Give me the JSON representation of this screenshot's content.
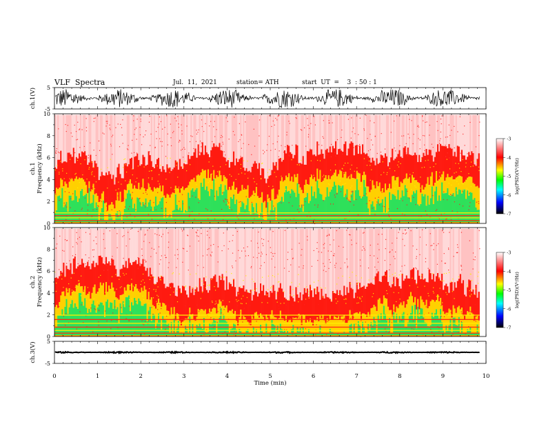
{
  "header": {
    "title": "VLF  Spectra",
    "date": "Jul.  11,  2021",
    "station": "station= ATH",
    "start": "start  UT  =    3  : 50 : 1"
  },
  "chart_data": [
    {
      "type": "line",
      "panel": "ch1-waveform",
      "ylabel": "ch.1(V)",
      "ylim": [
        -5,
        5
      ],
      "yticks": [
        "5",
        "-5"
      ],
      "xlim": [
        0,
        10
      ],
      "series_color": "#000000",
      "amplitude_range": [
        -4.5,
        4.5
      ]
    },
    {
      "type": "heatmap",
      "panel": "ch1-spectrogram",
      "ylabel": "Frequency (kHz)",
      "channel_label": "ch.1",
      "ylim": [
        0,
        10
      ],
      "yticks": [
        "0",
        "2",
        "4",
        "6",
        "8",
        "10"
      ],
      "xlim": [
        0,
        9.85
      ],
      "colorbar": {
        "label": "log(PSD)(V²/Hz)",
        "range": [
          -7,
          -3
        ],
        "ticks": [
          "-3",
          "-4",
          "-5",
          "-6",
          "-7"
        ],
        "colors": [
          "#ffffff",
          "#ff0000",
          "#ffff00",
          "#00ff00",
          "#00ffff",
          "#0000ff",
          "#000000"
        ]
      }
    },
    {
      "type": "heatmap",
      "panel": "ch2-spectrogram",
      "ylabel": "Frequency (kHz)",
      "channel_label": "ch.2",
      "ylim": [
        0,
        10
      ],
      "yticks": [
        "0",
        "2",
        "4",
        "6",
        "8",
        "10"
      ],
      "xlim": [
        0,
        9.85
      ],
      "colorbar": {
        "label": "log(PSD)(V²/Hz)",
        "range": [
          -7,
          -3
        ],
        "ticks": [
          "-3",
          "-4",
          "-5",
          "-6",
          "-7"
        ],
        "colors": [
          "#ffffff",
          "#ff0000",
          "#ffff00",
          "#00ff00",
          "#00ffff",
          "#0000ff",
          "#000000"
        ]
      }
    },
    {
      "type": "line",
      "panel": "ch3-waveform",
      "ylabel": "ch.3(V)",
      "ylim": [
        -5,
        5
      ],
      "yticks": [
        "5",
        "-5"
      ],
      "xlim": [
        0,
        10
      ],
      "series_color": "#000000",
      "amplitude_range": [
        -0.3,
        0.3
      ]
    }
  ],
  "x_axis": {
    "label": "Time  (min)",
    "ticks": [
      "0",
      "1",
      "2",
      "3",
      "4",
      "5",
      "6",
      "7",
      "8",
      "9",
      "10"
    ],
    "range": [
      0,
      10
    ]
  }
}
